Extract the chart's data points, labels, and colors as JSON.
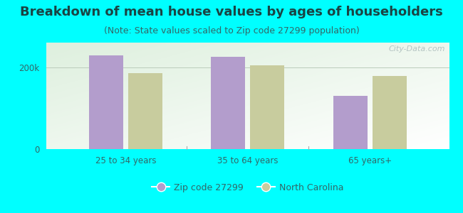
{
  "title": "Breakdown of mean house values by ages of householders",
  "subtitle": "(Note: State values scaled to Zip code 27299 population)",
  "categories": [
    "25 to 34 years",
    "35 to 64 years",
    "65 years+"
  ],
  "zip_values": [
    228000,
    225000,
    130000
  ],
  "nc_values": [
    185000,
    205000,
    178000
  ],
  "zip_color": "#b39dcc",
  "nc_color": "#c8cc9e",
  "ylim": [
    0,
    260000
  ],
  "yticks": [
    0,
    200000
  ],
  "ytick_labels": [
    "0",
    "200k"
  ],
  "background_color": "#00ffff",
  "title_fontsize": 13,
  "subtitle_fontsize": 9,
  "legend_labels": [
    "Zip code 27299",
    "North Carolina"
  ],
  "bar_width": 0.28,
  "watermark": "City-Data.com"
}
